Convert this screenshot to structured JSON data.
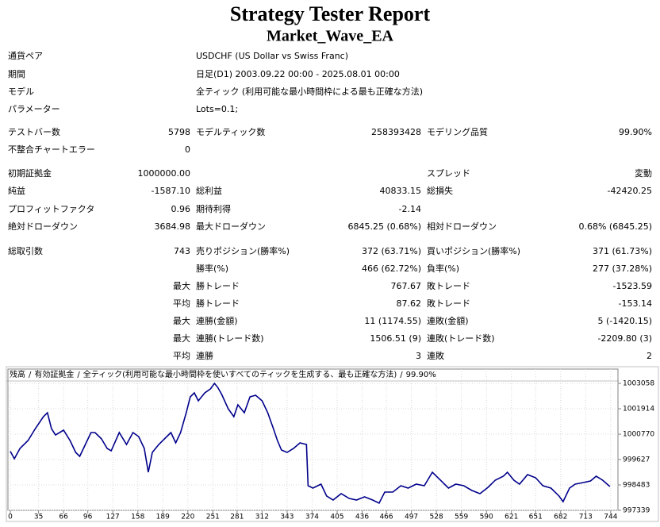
{
  "header": {
    "title": "Strategy Tester Report",
    "subtitle": "Market_Wave_EA"
  },
  "info": [
    [
      "通貨ペア",
      "USDCHF (US Dollar vs Swiss Franc)"
    ],
    [
      "期間",
      "日足(D1) 2003.09.22 00:00 - 2025.08.01 00:00"
    ],
    [
      "モデル",
      "全ティック (利用可能な最小時間枠による最も正確な方法)"
    ],
    [
      "パラメーター",
      "Lots=0.1;"
    ]
  ],
  "table": {
    "rows": [
      [
        "テストバー数",
        "5798",
        "モデルティック数",
        "258393428",
        "モデリング品質",
        "99.90%"
      ],
      [
        "不整合チャートエラー",
        "0",
        null,
        null,
        null,
        null
      ],
      [
        "初期証拠金",
        "1000000.00",
        null,
        null,
        "スプレッド",
        "変動"
      ],
      [
        "純益",
        "-1587.10",
        "総利益",
        "40833.15",
        "総損失",
        "-42420.25"
      ],
      [
        "プロフィットファクタ",
        "0.96",
        "期待利得",
        "-2.14",
        null,
        null
      ],
      [
        "絶対ドローダウン",
        "3684.98",
        "最大ドローダウン",
        "6845.25 (0.68%)",
        "相対ドローダウン",
        "0.68% (6845.25)"
      ],
      [
        "総取引数",
        "743",
        "売りポジション(勝率%)",
        "372 (63.71%)",
        "買いポジション(勝率%)",
        "371 (61.73%)"
      ],
      [
        null,
        null,
        "勝率(%)",
        "466 (62.72%)",
        "負率(%)",
        "277 (37.28%)"
      ],
      [
        null,
        "最大",
        "勝トレード",
        "767.67",
        "敗トレード",
        "-1523.59"
      ],
      [
        null,
        "平均",
        "勝トレード",
        "87.62",
        "敗トレード",
        "-153.14"
      ],
      [
        null,
        "最大",
        "連勝(金額)",
        "11 (1174.55)",
        "連敗(金額)",
        "5 (-1420.15)"
      ],
      [
        null,
        "最大",
        "連勝(トレード数)",
        "1506.51 (9)",
        "連敗(トレード数)",
        "-2209.80 (3)"
      ],
      [
        null,
        "平均",
        "連勝",
        "3",
        "連敗",
        "2"
      ]
    ]
  },
  "chart_data": {
    "type": "line",
    "separator": "/",
    "equity_label": "有効証拠金",
    "equity_color": "#008000",
    "model_label": "全ティック(利用可能な最小時間枠を使いすべてのティックを生成する、最も正確な方法)",
    "quality": "99.90%",
    "x": [
      0,
      5,
      12,
      22,
      31,
      41,
      46,
      51,
      56,
      66,
      74,
      81,
      86,
      93,
      100,
      105,
      113,
      120,
      125,
      135,
      144,
      152,
      159,
      166,
      171,
      176,
      184,
      194,
      199,
      205,
      211,
      218,
      223,
      228,
      233,
      241,
      248,
      253,
      257,
      262,
      270,
      277,
      282,
      290,
      297,
      304,
      312,
      319,
      326,
      331,
      336,
      343,
      351,
      359,
      367,
      369,
      375,
      385,
      392,
      400,
      410,
      420,
      429,
      439,
      449,
      457,
      464,
      474,
      484,
      493,
      503,
      513,
      523,
      533,
      543,
      552,
      562,
      572,
      582,
      592,
      601,
      611,
      616,
      624,
      631,
      641,
      651,
      660,
      670,
      680,
      685,
      693,
      700,
      710,
      719,
      726,
      734,
      743
    ],
    "series": [
      {
        "name": "残高",
        "color": "#00008b",
        "values": [
          1000000,
          999663,
          1000128,
          1000485,
          1001021,
          1001558,
          1001736,
          1001021,
          1000735,
          1000950,
          1000485,
          999949,
          999770,
          1000306,
          1000843,
          1000843,
          1000557,
          1000128,
          1000020,
          1000843,
          1000306,
          1000843,
          1000664,
          1000128,
          999055,
          999949,
          1000306,
          1000664,
          1000843,
          1000378,
          1000843,
          1001736,
          1002451,
          1002630,
          1002273,
          1002630,
          1002809,
          1003059,
          1002880,
          1002559,
          1001915,
          1001558,
          1002094,
          1001736,
          1002451,
          1002523,
          1002273,
          1001736,
          1001021,
          1000485,
          1000056,
          999949,
          1000128,
          1000378,
          1000306,
          998447,
          998340,
          998519,
          997983,
          997804,
          998090,
          997875,
          997804,
          997947,
          997804,
          997661,
          998161,
          998161,
          998447,
          998340,
          998519,
          998447,
          999055,
          998698,
          998340,
          998519,
          998447,
          998233,
          998090,
          998376,
          998698,
          998876,
          999055,
          998698,
          998519,
          998948,
          998805,
          998447,
          998340,
          997983,
          997732,
          998340,
          998519,
          998590,
          998662,
          998876,
          998698,
          998413
        ]
      }
    ],
    "xlim": [
      0,
      753
    ],
    "xticks": [
      0,
      35,
      66,
      96,
      127,
      158,
      189,
      220,
      251,
      281,
      312,
      343,
      374,
      405,
      436,
      466,
      497,
      528,
      559,
      590,
      621,
      651,
      682,
      713,
      744
    ],
    "ylim": [
      997339,
      1003703
    ],
    "yticks": [
      997339,
      998483,
      999627,
      1000770,
      1001914,
      1003058
    ],
    "grid": true
  }
}
